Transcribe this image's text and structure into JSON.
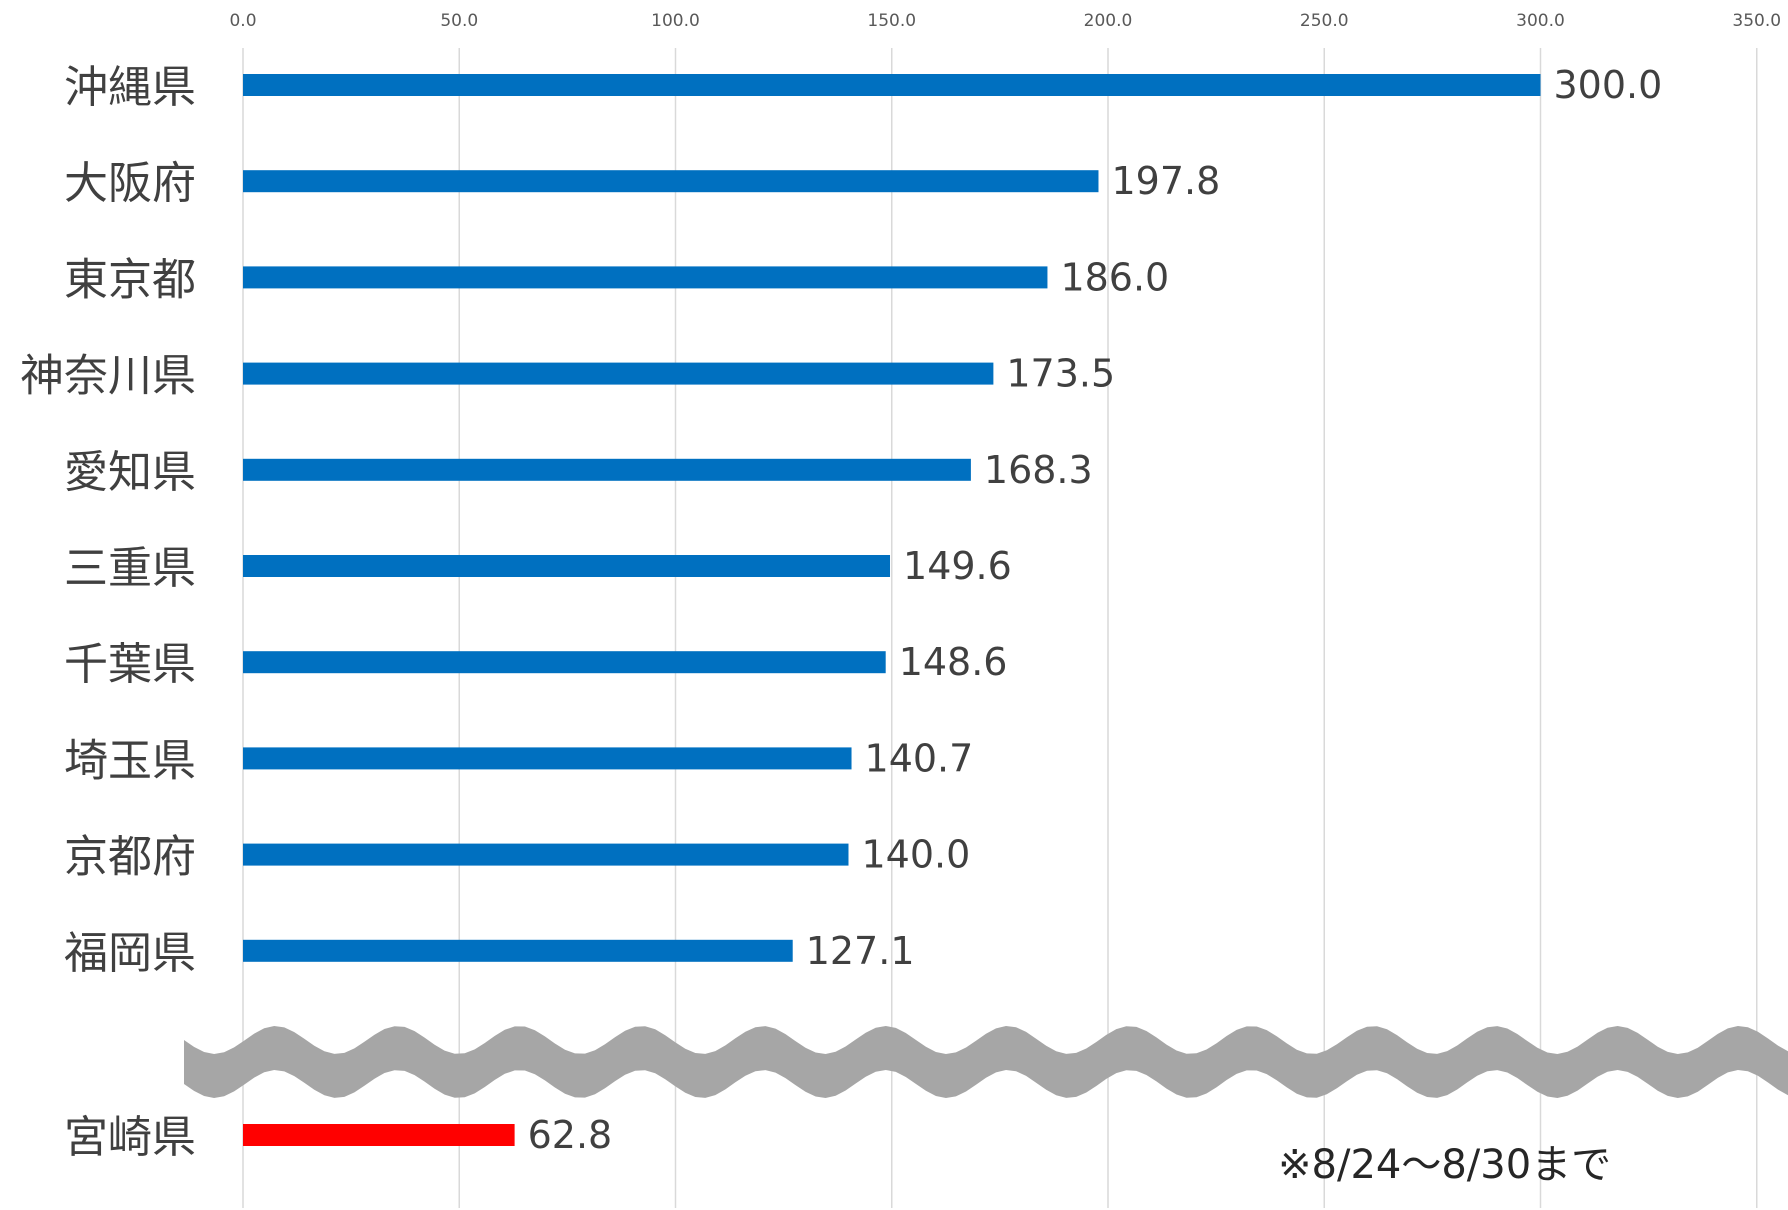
{
  "chart_data": {
    "type": "bar",
    "orientation": "horizontal",
    "axis": {
      "xlim": [
        0,
        350
      ],
      "ticks": [
        0,
        50,
        100,
        150,
        200,
        250,
        300,
        350
      ],
      "tick_labels": [
        "0.0",
        "50.0",
        "100.0",
        "150.0",
        "200.0",
        "250.0",
        "300.0",
        "350.0"
      ],
      "tick_position": "top",
      "grid": true
    },
    "bars": [
      {
        "category": "沖縄県",
        "value": 300.0,
        "label": "300.0"
      },
      {
        "category": "大阪府",
        "value": 197.8,
        "label": "197.8"
      },
      {
        "category": "東京都",
        "value": 186.0,
        "label": "186.0"
      },
      {
        "category": "神奈川県",
        "value": 173.5,
        "label": "173.5"
      },
      {
        "category": "愛知県",
        "value": 168.3,
        "label": "168.3"
      },
      {
        "category": "三重県",
        "value": 149.6,
        "label": "149.6"
      },
      {
        "category": "千葉県",
        "value": 148.6,
        "label": "148.6"
      },
      {
        "category": "埼玉県",
        "value": 140.7,
        "label": "140.7"
      },
      {
        "category": "京都府",
        "value": 140.0,
        "label": "140.0"
      },
      {
        "category": "福岡県",
        "value": 127.1,
        "label": "127.1"
      }
    ],
    "highlight": {
      "category": "宮崎県",
      "value": 62.8,
      "label": "62.8"
    },
    "axis_break": true,
    "note": "※8/24〜8/30まで"
  },
  "colors": {
    "bar": "#0070c0",
    "highlight_bar": "#ff0000",
    "grid": "#d9d9d9",
    "axis_break": "#a6a6a6"
  }
}
